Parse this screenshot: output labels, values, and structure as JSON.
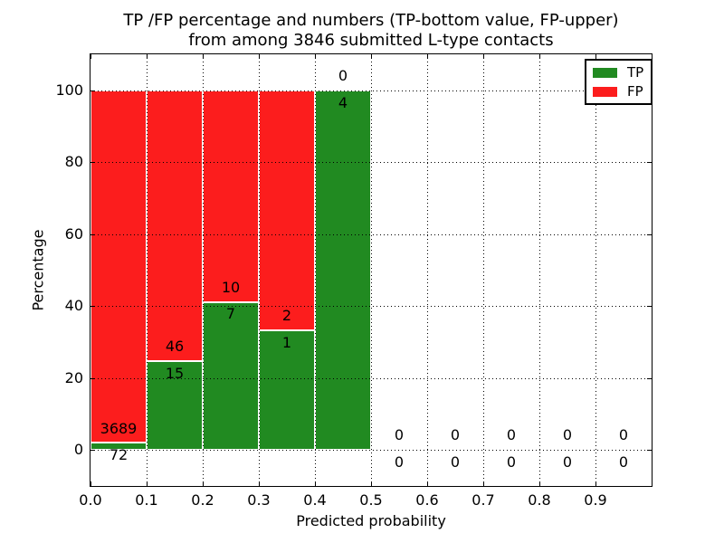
{
  "figure": {
    "title_line1": "TP /FP percentage and numbers (TP-bottom value, FP-upper)",
    "title_line2": "from among 3846 submitted L-type contacts"
  },
  "chart_data": {
    "type": "bar",
    "stacked": true,
    "title": "TP /FP percentage and numbers (TP-bottom value, FP-upper) from among 3846 submitted L-type contacts",
    "xlabel": "Predicted probability",
    "ylabel": "Percentage",
    "xlim": [
      0.0,
      1.0
    ],
    "ylim": [
      -10,
      110
    ],
    "grid": true,
    "grid_style": "dotted",
    "legend_position": "upper right",
    "total_submitted": 3846,
    "series": [
      {
        "name": "TP",
        "color": "#218a21"
      },
      {
        "name": "FP",
        "color": "#fc1d1d"
      }
    ],
    "xticks": [
      {
        "v": 0.0,
        "label": "0.0"
      },
      {
        "v": 0.1,
        "label": "0.1"
      },
      {
        "v": 0.2,
        "label": "0.2"
      },
      {
        "v": 0.3,
        "label": "0.3"
      },
      {
        "v": 0.4,
        "label": "0.4"
      },
      {
        "v": 0.5,
        "label": "0.5"
      },
      {
        "v": 0.6,
        "label": "0.6"
      },
      {
        "v": 0.7,
        "label": "0.7"
      },
      {
        "v": 0.8,
        "label": "0.8"
      },
      {
        "v": 0.9,
        "label": "0.9"
      }
    ],
    "yticks": [
      {
        "v": 0,
        "label": "0"
      },
      {
        "v": 20,
        "label": "20"
      },
      {
        "v": 40,
        "label": "40"
      },
      {
        "v": 60,
        "label": "60"
      },
      {
        "v": 80,
        "label": "80"
      },
      {
        "v": 100,
        "label": "100"
      }
    ],
    "bins": [
      {
        "x0": 0.0,
        "x1": 0.1,
        "tp": 72,
        "fp": 3689,
        "tp_pct": 1.91,
        "fp_pct": 98.09
      },
      {
        "x0": 0.1,
        "x1": 0.2,
        "tp": 15,
        "fp": 46,
        "tp_pct": 24.59,
        "fp_pct": 75.41
      },
      {
        "x0": 0.2,
        "x1": 0.3,
        "tp": 7,
        "fp": 10,
        "tp_pct": 41.18,
        "fp_pct": 58.82
      },
      {
        "x0": 0.3,
        "x1": 0.4,
        "tp": 1,
        "fp": 2,
        "tp_pct": 33.33,
        "fp_pct": 66.67
      },
      {
        "x0": 0.4,
        "x1": 0.5,
        "tp": 4,
        "fp": 0,
        "tp_pct": 100.0,
        "fp_pct": 0.0
      },
      {
        "x0": 0.5,
        "x1": 0.6,
        "tp": 0,
        "fp": 0,
        "tp_pct": 0.0,
        "fp_pct": 0.0
      },
      {
        "x0": 0.6,
        "x1": 0.7,
        "tp": 0,
        "fp": 0,
        "tp_pct": 0.0,
        "fp_pct": 0.0
      },
      {
        "x0": 0.7,
        "x1": 0.8,
        "tp": 0,
        "fp": 0,
        "tp_pct": 0.0,
        "fp_pct": 0.0
      },
      {
        "x0": 0.8,
        "x1": 0.9,
        "tp": 0,
        "fp": 0,
        "tp_pct": 0.0,
        "fp_pct": 0.0
      },
      {
        "x0": 0.9,
        "x1": 1.0,
        "tp": 0,
        "fp": 0,
        "tp_pct": 0.0,
        "fp_pct": 0.0
      }
    ]
  }
}
